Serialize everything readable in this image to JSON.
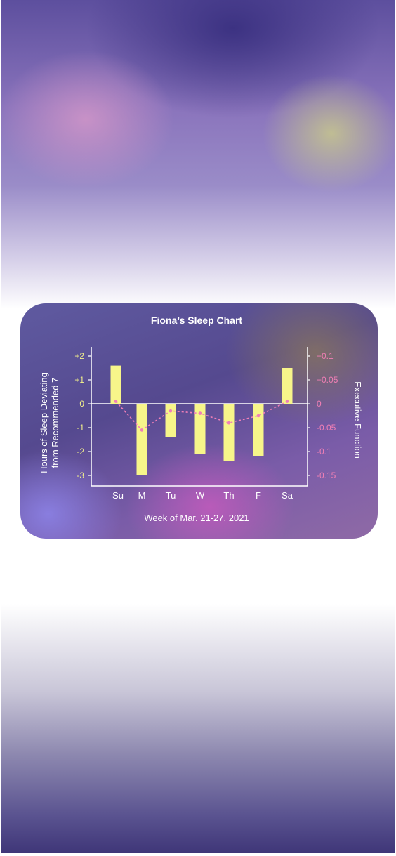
{
  "chart_data": {
    "type": "bar",
    "title": "Fiona’s Sleep Chart",
    "xlabel": "Week of Mar. 21-27, 2021",
    "ylabel": "Hours of Sleep Deviating from Recommended 7",
    "ylabel_lines": [
      "Hours of Sleep Deviating",
      "from Recommended 7"
    ],
    "y2label": "Executive Function",
    "categories": [
      "Su",
      "M",
      "Tu",
      "W",
      "Th",
      "F",
      "Sa"
    ],
    "series": [
      {
        "values": [
          1.6,
          -3.0,
          -1.4,
          -2.1,
          -2.4,
          -2.2,
          1.5
        ],
        "color": "#f7f58a"
      },
      {
        "values": [
          0.005,
          -0.055,
          -0.015,
          -0.02,
          -0.04,
          -0.025,
          0.005
        ],
        "color": "#f07fb8",
        "axis": "right"
      }
    ],
    "ylim": [
      -3.4,
      2.4
    ],
    "y2lim": [
      -0.17,
      0.12
    ],
    "yticks": [
      2,
      1,
      0,
      -1,
      -2,
      -3
    ],
    "yticklabels": [
      "+2",
      "+1",
      "0",
      "-1",
      "-2",
      "-3"
    ],
    "y2ticks": [
      0.1,
      0.05,
      0,
      -0.05,
      -0.1,
      -0.15
    ],
    "y2ticklabels": [
      "+0.1",
      "+0.05",
      "0",
      "-0.05",
      "-0.1",
      "-0.15"
    ],
    "grid": false,
    "legend": "none"
  }
}
